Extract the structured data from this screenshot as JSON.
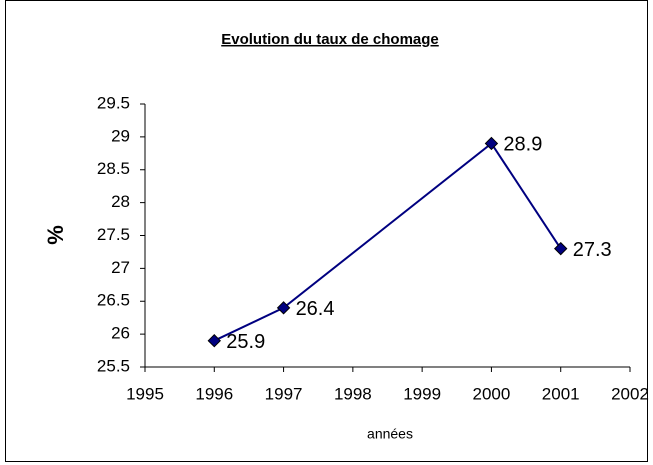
{
  "chart_data": {
    "type": "line",
    "title": "Evolution du taux de chomage",
    "x_label": "années",
    "y_label": "%",
    "x": [
      1996,
      1997,
      2000,
      2001
    ],
    "series": [
      {
        "name": null,
        "color": "#000080",
        "values": [
          25.9,
          26.4,
          28.9,
          27.3
        ]
      }
    ],
    "xlim": [
      1995,
      2002
    ],
    "xticks": [
      1995,
      1996,
      1997,
      1998,
      1999,
      2000,
      2001,
      2002
    ],
    "ylim": [
      25.5,
      29.5
    ],
    "yticks": [
      25.5,
      26,
      26.5,
      27,
      27.5,
      28,
      28.5,
      29,
      29.5
    ],
    "grid": false
  }
}
